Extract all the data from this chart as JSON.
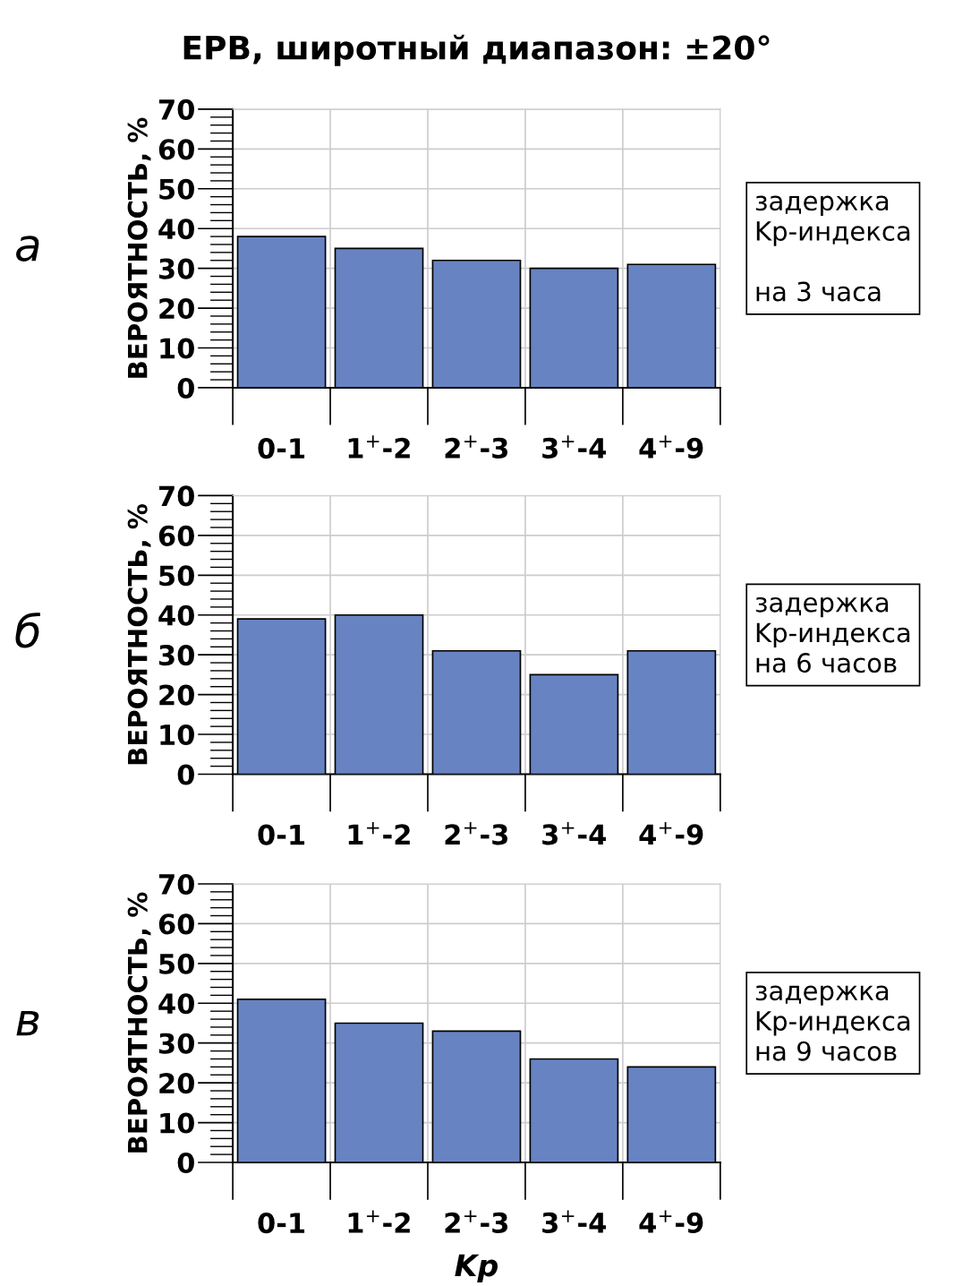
{
  "chart_data": [
    {
      "type": "bar",
      "title": "EPB, широтный диапазон: ±20°",
      "categories": [
        "0-1",
        "1$^{+}$-2",
        "2$^{+}$-3",
        "3$^{+}$-4",
        "4$^{+}$-9"
      ],
      "values": [
        38,
        35,
        32,
        30,
        31
      ],
      "color": "#6783c2",
      "ylabel": "ВЕРОЯТНОСТЬ, %",
      "ylim": [
        0,
        70
      ],
      "yticks": [
        0,
        10,
        20,
        30,
        40,
        50,
        60,
        70
      ],
      "grid": true,
      "annotations": [
        "а",
        "задержка\nKp-индекса\n\nна 3 часа"
      ]
    },
    {
      "type": "bar",
      "categories": [
        "0-1",
        "1$^{+}$-2",
        "2$^{+}$-3",
        "3$^{+}$-4",
        "4$^{+}$-9"
      ],
      "values": [
        39,
        40,
        31,
        25,
        31
      ],
      "color": "#6783c2",
      "ylabel": "ВЕРОЯТНОСТЬ, %",
      "ylim": [
        0,
        70
      ],
      "yticks": [
        0,
        10,
        20,
        30,
        40,
        50,
        60,
        70
      ],
      "grid": true,
      "annotations": [
        "б",
        "задержка\nKp-индекса\nна 6 часов"
      ]
    },
    {
      "type": "bar",
      "categories": [
        "0-1",
        "1$^{+}$-2",
        "2$^{+}$-3",
        "3$^{+}$-4",
        "4$^{+}$-9"
      ],
      "values": [
        41,
        35,
        33,
        26,
        24
      ],
      "color": "#6783c2",
      "ylabel": "ВЕРОЯТНОСТЬ, %",
      "xlabel": "Kp",
      "ylim": [
        0,
        70
      ],
      "yticks": [
        0,
        10,
        20,
        30,
        40,
        50,
        60,
        70
      ],
      "grid": true,
      "annotations": [
        "в",
        "задержка\nKp-индекса\nна 9 часов"
      ]
    }
  ]
}
